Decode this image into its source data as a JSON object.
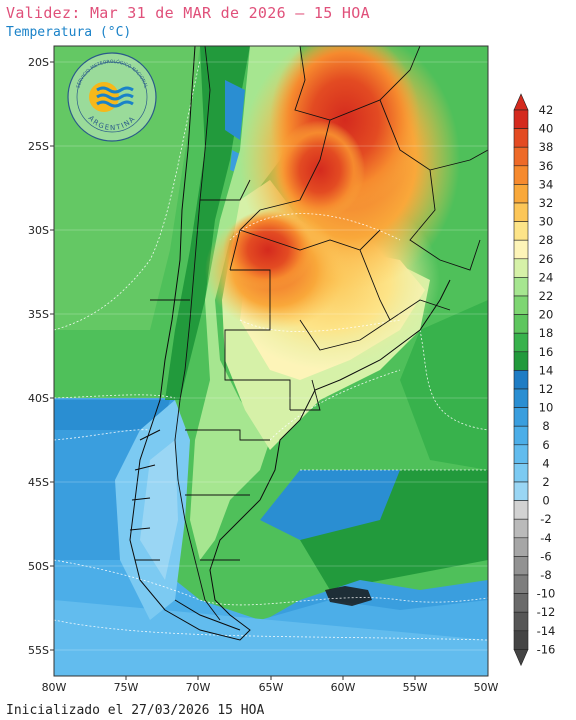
{
  "header": {
    "title": "Validez: Mar 31 de MAR de 2026 – 15 HOA",
    "subtitle": "Temperatura (°C)"
  },
  "footer": {
    "initialized": "Inicializado el 27/03/2026 15 HOA"
  },
  "logo": {
    "top_text": "SERVICIO METEOROLÓGICO NACIONAL",
    "bottom_text": "ARGENTINA",
    "icon": "smn-sun-waves-logo"
  },
  "map": {
    "lat_ticks": [
      "20S",
      "25S",
      "30S",
      "35S",
      "40S",
      "45S",
      "50S",
      "55S"
    ],
    "lon_ticks": [
      "80W",
      "75W",
      "70W",
      "65W",
      "60W",
      "55W",
      "50W"
    ],
    "background_color": "#4fc05a"
  },
  "legend": {
    "levels": [
      "42",
      "40",
      "38",
      "36",
      "34",
      "32",
      "30",
      "28",
      "26",
      "24",
      "22",
      "20",
      "18",
      "16",
      "14",
      "12",
      "10",
      "8",
      "6",
      "4",
      "2",
      "0",
      "-2",
      "-4",
      "-6",
      "-8",
      "-10",
      "-12",
      "-14",
      "-16"
    ],
    "colors": [
      "#d42a1e",
      "#e34b22",
      "#ee6a28",
      "#f68a2e",
      "#f9a83a",
      "#fcc658",
      "#fde488",
      "#fdf4b8",
      "#d6f1a8",
      "#a6e690",
      "#7ed672",
      "#5ec65e",
      "#38b24c",
      "#229a3c",
      "#1e7cc4",
      "#2a8ed2",
      "#3a9ede",
      "#4caee8",
      "#62bcee",
      "#7ccaf2",
      "#9ad6f4",
      "#d2d2d2",
      "#bababa",
      "#a6a6a6",
      "#929292",
      "#7e7e7e",
      "#6a6a6a",
      "#565656",
      "#444444"
    ]
  }
}
